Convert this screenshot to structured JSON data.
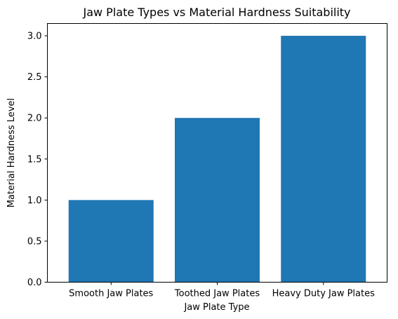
{
  "chart_data": {
    "type": "bar",
    "title": "Jaw Plate Types vs Material Hardness Suitability",
    "xlabel": "Jaw Plate Type",
    "ylabel": "Material Hardness Level",
    "categories": [
      "Smooth Jaw Plates",
      "Toothed Jaw Plates",
      "Heavy Duty Jaw Plates"
    ],
    "values": [
      1,
      2,
      3
    ],
    "ylim": [
      0,
      3.15
    ],
    "yticks": [
      "0.0",
      "0.5",
      "1.0",
      "1.5",
      "2.0",
      "2.5",
      "3.0"
    ],
    "bar_color": "#1f77b4",
    "grid": false,
    "legend": "none"
  }
}
